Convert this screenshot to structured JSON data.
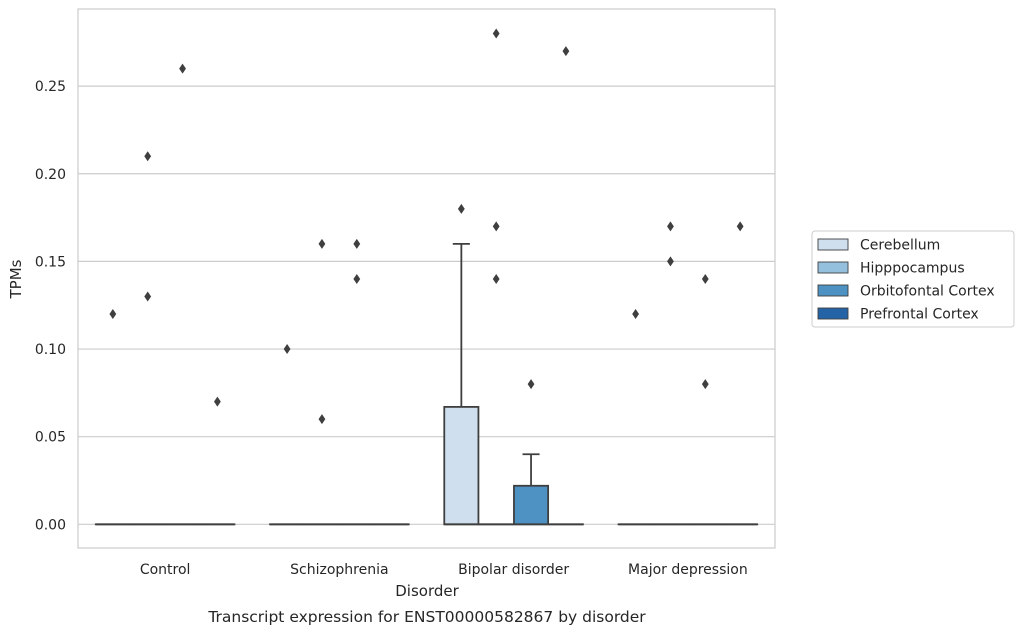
{
  "chart_data": {
    "type": "box",
    "caption": "Transcript expression for ENST00000582867 by disorder",
    "xlabel": "Disorder",
    "ylabel": "TPMs",
    "ylim": [
      -0.0135,
      0.294
    ],
    "yticks": [
      0.0,
      0.05,
      0.1,
      0.15,
      0.2,
      0.25
    ],
    "ytick_labels": [
      "0.00",
      "0.05",
      "0.10",
      "0.15",
      "0.20",
      "0.25"
    ],
    "categories": [
      "Control",
      "Schizophrenia",
      "Bipolar disorder",
      "Major depression"
    ],
    "grid": "horizontal",
    "legend_position": "right",
    "series": [
      {
        "name": "Cerebellum",
        "color": "#d0dfee",
        "boxes": [
          {
            "q1": 0,
            "median": 0,
            "q3": 0,
            "whisker_low": 0,
            "whisker_high": 0,
            "outliers": [
              0.12
            ]
          },
          {
            "q1": 0,
            "median": 0,
            "q3": 0,
            "whisker_low": 0,
            "whisker_high": 0,
            "outliers": [
              0.1
            ]
          },
          {
            "q1": 0,
            "median": 0,
            "q3": 0.067,
            "whisker_low": 0,
            "whisker_high": 0.16,
            "outliers": [
              0.18
            ]
          },
          {
            "q1": 0,
            "median": 0,
            "q3": 0,
            "whisker_low": 0,
            "whisker_high": 0,
            "outliers": [
              0.12
            ]
          }
        ]
      },
      {
        "name": "Hipppocampus",
        "color": "#94c0dd",
        "boxes": [
          {
            "q1": 0,
            "median": 0,
            "q3": 0,
            "whisker_low": 0,
            "whisker_high": 0,
            "outliers": [
              0.13,
              0.21
            ]
          },
          {
            "q1": 0,
            "median": 0,
            "q3": 0,
            "whisker_low": 0,
            "whisker_high": 0,
            "outliers": [
              0.06,
              0.16
            ]
          },
          {
            "q1": 0,
            "median": 0,
            "q3": 0,
            "whisker_low": 0,
            "whisker_high": 0,
            "outliers": [
              0.14,
              0.17,
              0.28
            ]
          },
          {
            "q1": 0,
            "median": 0,
            "q3": 0,
            "whisker_low": 0,
            "whisker_high": 0,
            "outliers": [
              0.15,
              0.17
            ]
          }
        ]
      },
      {
        "name": "Orbitofontal Cortex",
        "color": "#4d92c2",
        "boxes": [
          {
            "q1": 0,
            "median": 0,
            "q3": 0,
            "whisker_low": 0,
            "whisker_high": 0,
            "outliers": [
              0.26
            ]
          },
          {
            "q1": 0,
            "median": 0,
            "q3": 0,
            "whisker_low": 0,
            "whisker_high": 0,
            "outliers": [
              0.14,
              0.16
            ]
          },
          {
            "q1": 0,
            "median": 0,
            "q3": 0.022,
            "whisker_low": 0,
            "whisker_high": 0.04,
            "outliers": [
              0.08
            ]
          },
          {
            "q1": 0,
            "median": 0,
            "q3": 0,
            "whisker_low": 0,
            "whisker_high": 0,
            "outliers": [
              0.08,
              0.14
            ]
          }
        ]
      },
      {
        "name": "Prefrontal Cortex",
        "color": "#2464a6",
        "boxes": [
          {
            "q1": 0,
            "median": 0,
            "q3": 0,
            "whisker_low": 0,
            "whisker_high": 0,
            "outliers": [
              0.07
            ]
          },
          {
            "q1": 0,
            "median": 0,
            "q3": 0,
            "whisker_low": 0,
            "whisker_high": 0,
            "outliers": []
          },
          {
            "q1": 0,
            "median": 0,
            "q3": 0,
            "whisker_low": 0,
            "whisker_high": 0,
            "outliers": [
              0.27
            ]
          },
          {
            "q1": 0,
            "median": 0,
            "q3": 0,
            "whisker_low": 0,
            "whisker_high": 0,
            "outliers": [
              0.17
            ]
          }
        ]
      }
    ]
  }
}
